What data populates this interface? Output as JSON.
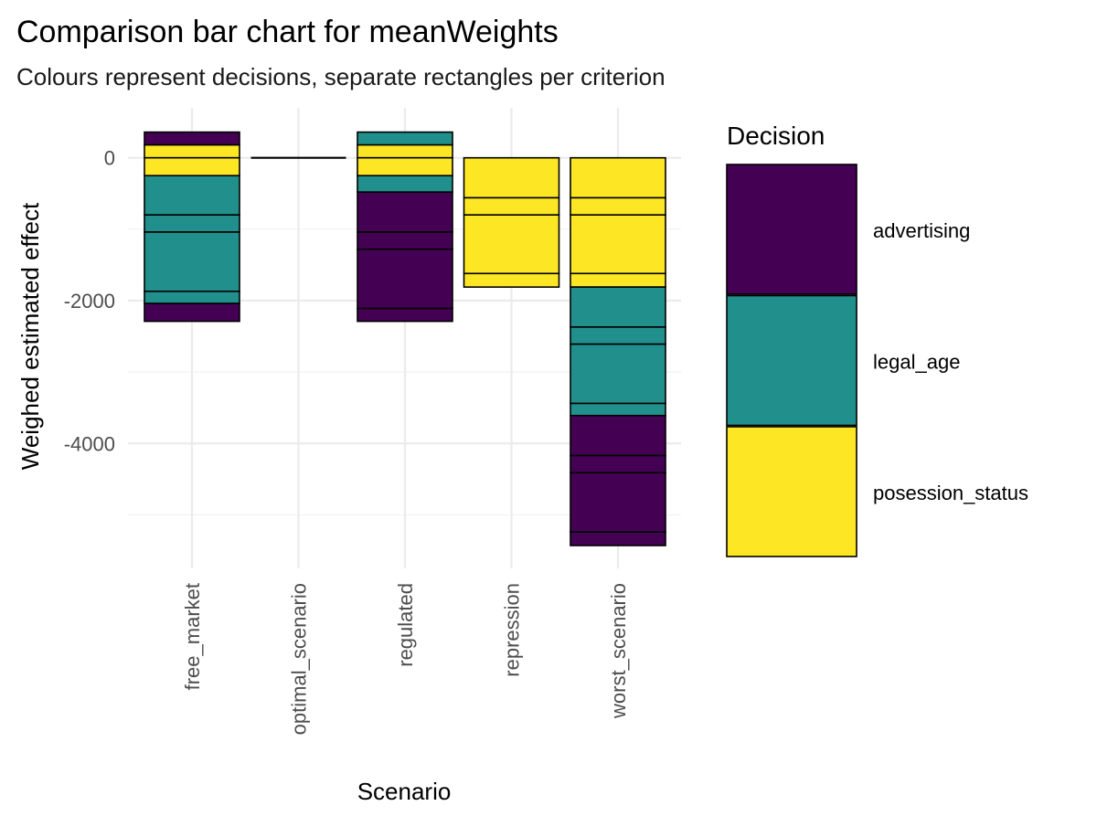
{
  "chart_data": {
    "type": "bar",
    "title": "Comparison bar chart for meanWeights",
    "subtitle": "Colours represent decisions, separate rectangles per criterion",
    "xlabel": "Scenario",
    "ylabel": "Weighed estimated effect",
    "categories": [
      "free_market",
      "optimal_scenario",
      "regulated",
      "repression",
      "worst_scenario"
    ],
    "ylim": [
      -5750,
      700
    ],
    "yticks": [
      0,
      -2000,
      -4000
    ],
    "ytick_labels": [
      "0",
      "-2000",
      "-4000"
    ],
    "grid": true,
    "legend": {
      "title": "Decision",
      "position": "right",
      "entries": [
        {
          "label": "advertising",
          "color": "#440154"
        },
        {
          "label": "legal_age",
          "color": "#21908C"
        },
        {
          "label": "posession_status",
          "color": "#FDE725"
        }
      ]
    },
    "segments": [
      {
        "category": "free_market",
        "decision": "advertising",
        "from": 180,
        "to": 360
      },
      {
        "category": "free_market",
        "decision": "posession_status",
        "from": 0,
        "to": 180
      },
      {
        "category": "free_market",
        "decision": "posession_status",
        "from": -250,
        "to": 0
      },
      {
        "category": "free_market",
        "decision": "legal_age",
        "from": -800,
        "to": -250
      },
      {
        "category": "free_market",
        "decision": "legal_age",
        "from": -1040,
        "to": -800
      },
      {
        "category": "free_market",
        "decision": "legal_age",
        "from": -1870,
        "to": -1040
      },
      {
        "category": "free_market",
        "decision": "legal_age",
        "from": -2040,
        "to": -1870
      },
      {
        "category": "free_market",
        "decision": "advertising",
        "from": -2290,
        "to": -2040
      },
      {
        "category": "optimal_scenario",
        "decision": "posession_status",
        "from": 0,
        "to": 0
      },
      {
        "category": "regulated",
        "decision": "legal_age",
        "from": 180,
        "to": 360
      },
      {
        "category": "regulated",
        "decision": "posession_status",
        "from": 0,
        "to": 180
      },
      {
        "category": "regulated",
        "decision": "posession_status",
        "from": -250,
        "to": 0
      },
      {
        "category": "regulated",
        "decision": "legal_age",
        "from": -480,
        "to": -250
      },
      {
        "category": "regulated",
        "decision": "advertising",
        "from": -1040,
        "to": -480
      },
      {
        "category": "regulated",
        "decision": "advertising",
        "from": -1280,
        "to": -1040
      },
      {
        "category": "regulated",
        "decision": "advertising",
        "from": -2110,
        "to": -1280
      },
      {
        "category": "regulated",
        "decision": "advertising",
        "from": -2290,
        "to": -2110
      },
      {
        "category": "repression",
        "decision": "posession_status",
        "from": -560,
        "to": 0
      },
      {
        "category": "repression",
        "decision": "posession_status",
        "from": -800,
        "to": -560
      },
      {
        "category": "repression",
        "decision": "posession_status",
        "from": -1620,
        "to": -800
      },
      {
        "category": "repression",
        "decision": "posession_status",
        "from": -1810,
        "to": -1620
      },
      {
        "category": "worst_scenario",
        "decision": "posession_status",
        "from": -560,
        "to": 0
      },
      {
        "category": "worst_scenario",
        "decision": "posession_status",
        "from": -800,
        "to": -560
      },
      {
        "category": "worst_scenario",
        "decision": "posession_status",
        "from": -1620,
        "to": -800
      },
      {
        "category": "worst_scenario",
        "decision": "posession_status",
        "from": -1810,
        "to": -1620
      },
      {
        "category": "worst_scenario",
        "decision": "legal_age",
        "from": -2370,
        "to": -1810
      },
      {
        "category": "worst_scenario",
        "decision": "legal_age",
        "from": -2610,
        "to": -2370
      },
      {
        "category": "worst_scenario",
        "decision": "legal_age",
        "from": -3440,
        "to": -2610
      },
      {
        "category": "worst_scenario",
        "decision": "legal_age",
        "from": -3610,
        "to": -3440
      },
      {
        "category": "worst_scenario",
        "decision": "advertising",
        "from": -4170,
        "to": -3610
      },
      {
        "category": "worst_scenario",
        "decision": "advertising",
        "from": -4410,
        "to": -4170
      },
      {
        "category": "worst_scenario",
        "decision": "advertising",
        "from": -5240,
        "to": -4410
      },
      {
        "category": "worst_scenario",
        "decision": "advertising",
        "from": -5430,
        "to": -5240
      }
    ]
  }
}
